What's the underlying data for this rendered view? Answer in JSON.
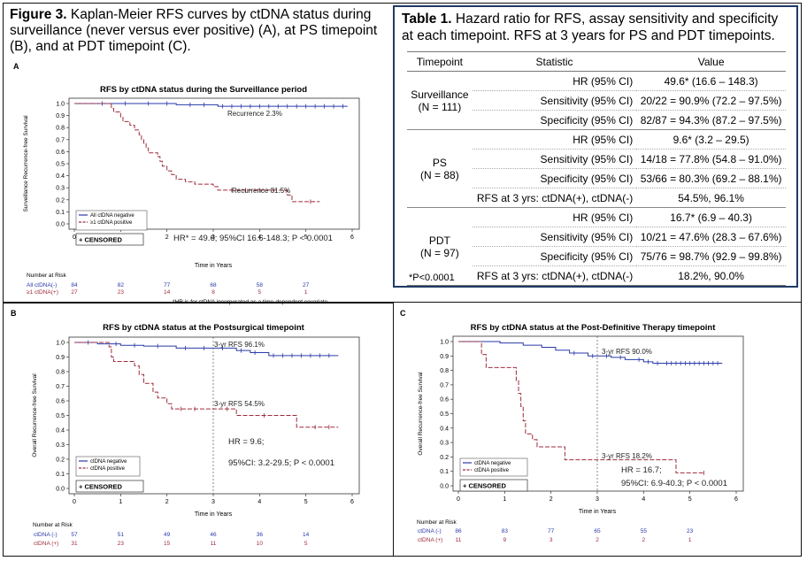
{
  "figure_caption": {
    "label": "Figure 3.",
    "text": "Kaplan-Meier RFS curves by ctDNA status during surveillance (never versus ever positive) (A), at PS timepoint (B), and at PDT timepoint (C)."
  },
  "table": {
    "label": "Table 1.",
    "caption": "Hazard ratio for RFS, assay sensitivity and specificity at each timepoint. RFS at 3 years for PS and PDT timepoints.",
    "headers": [
      "Timepoint",
      "Statistic",
      "Value"
    ],
    "groups": [
      {
        "name": "Surveillance",
        "n": "(N = 111)",
        "rows": [
          {
            "stat": "HR (95% CI)",
            "value": "49.6* (16.6 – 148.3)"
          },
          {
            "stat": "Sensitivity (95% CI)",
            "value": "20/22 = 90.9% (72.2 – 97.5%)"
          },
          {
            "stat": "Specificity (95% CI)",
            "value": "82/87 = 94.3% (87.2 – 97.5%)"
          }
        ]
      },
      {
        "name": "PS",
        "n": "(N = 88)",
        "rows": [
          {
            "stat": "HR (95% CI)",
            "value": "9.6* (3.2 – 29.5)"
          },
          {
            "stat": "Sensitivity (95% CI)",
            "value": "14/18 = 77.8% (54.8 – 91.0%)"
          },
          {
            "stat": "Specificity (95% CI)",
            "value": "53/66 = 80.3% (69.2 – 88.1%)"
          },
          {
            "stat": "RFS at 3 yrs: ctDNA(+), ctDNA(-)",
            "value": "54.5%, 96.1%"
          }
        ]
      },
      {
        "name": "PDT",
        "n": "(N = 97)",
        "rows": [
          {
            "stat": "HR (95% CI)",
            "value": "16.7* (6.9 – 40.3)"
          },
          {
            "stat": "Sensitivity (95% CI)",
            "value": "10/21 = 47.6% (28.3 – 67.6%)"
          },
          {
            "stat": "Specificity (95% CI)",
            "value": "75/76 = 98.7% (92.9 – 99.8%)"
          },
          {
            "stat": "RFS at 3 yrs: ctDNA(+), ctDNA(-)",
            "value": "18.2%, 90.0%"
          }
        ]
      }
    ],
    "footnote": "*P<0.0001"
  },
  "colors": {
    "negative": "#2a3aa8",
    "positive": "#9e2b3c",
    "axis": "#222222",
    "border": "#1f3a66"
  },
  "chart_data": [
    {
      "panel": "A",
      "type": "line",
      "title": "RFS by ctDNA status during the Surveillance period",
      "xlabel": "Time in Years",
      "ylabel": "Surveillance Recurrence-free Survival",
      "xlim": [
        0,
        6
      ],
      "ylim": [
        0,
        1
      ],
      "xticks": [
        "0",
        "1",
        "2",
        "3",
        "4",
        "5",
        "6"
      ],
      "yticks": [
        "0.0",
        "0.1",
        "0.2",
        "0.3",
        "0.4",
        "0.5",
        "0.6",
        "0.7",
        "0.8",
        "0.9",
        "1.0"
      ],
      "series": [
        {
          "name": "All ctDNA negative",
          "color_key": "negative",
          "steps": [
            [
              0,
              1.0
            ],
            [
              2.2,
              0.99
            ],
            [
              3.1,
              0.977
            ],
            [
              5.9,
              0.977
            ]
          ],
          "censored": [
            0.6,
            1.1,
            1.6,
            2.0,
            2.5,
            2.8,
            3.2,
            3.4,
            3.6,
            3.8,
            4.0,
            4.2,
            4.4,
            4.6,
            4.8,
            5.0,
            5.2,
            5.4,
            5.6,
            5.8
          ]
        },
        {
          "name": "≥1 ctDNA positive",
          "color_key": "positive",
          "steps": [
            [
              0,
              1.0
            ],
            [
              0.8,
              0.96
            ],
            [
              0.85,
              0.93
            ],
            [
              1.0,
              0.89
            ],
            [
              1.05,
              0.85
            ],
            [
              1.2,
              0.82
            ],
            [
              1.3,
              0.78
            ],
            [
              1.4,
              0.74
            ],
            [
              1.45,
              0.7
            ],
            [
              1.5,
              0.67
            ],
            [
              1.55,
              0.63
            ],
            [
              1.6,
              0.59
            ],
            [
              1.8,
              0.56
            ],
            [
              1.85,
              0.52
            ],
            [
              1.9,
              0.48
            ],
            [
              2.0,
              0.44
            ],
            [
              2.1,
              0.41
            ],
            [
              2.2,
              0.37
            ],
            [
              2.4,
              0.35
            ],
            [
              2.6,
              0.33
            ],
            [
              3.0,
              0.31
            ],
            [
              3.1,
              0.28
            ],
            [
              4.6,
              0.24
            ],
            [
              4.7,
              0.185
            ],
            [
              5.3,
              0.185
            ]
          ],
          "censored": [
            3.4,
            3.7,
            4.0,
            4.3,
            5.1
          ]
        }
      ],
      "annotations": [
        "Recurrence 2.3%",
        "Recurrence 81.5%",
        "HR* = 49.6; 95%CI 16.6-148.3; P < 0.0001"
      ],
      "censored_label": "+ CENSORED",
      "risk_table": {
        "title": "Number at Risk",
        "rows": [
          {
            "label": "All ctDNA(-)",
            "color_key": "negative",
            "values": [
              "84",
              "82",
              "77",
              "68",
              "58",
              "27"
            ]
          },
          {
            "label": "≥1 ctDNA(+)",
            "color_key": "positive",
            "values": [
              "27",
              "23",
              "14",
              "8",
              "5",
              "1"
            ]
          }
        ]
      },
      "footnote": "*HR is for ctDNA incorporated as a time-dependent covariate"
    },
    {
      "panel": "B",
      "type": "line",
      "title": "RFS by ctDNA status at the Postsurgical timepoint",
      "xlabel": "Time in Years",
      "ylabel": "Overall Recurrence-free Survival",
      "xlim": [
        0,
        6
      ],
      "ylim": [
        0,
        1
      ],
      "xticks": [
        "0",
        "1",
        "2",
        "3",
        "4",
        "5",
        "6"
      ],
      "yticks": [
        "0.0",
        "0.1",
        "0.2",
        "0.3",
        "0.4",
        "0.5",
        "0.6",
        "0.7",
        "0.8",
        "0.9",
        "1.0"
      ],
      "series": [
        {
          "name": "ctDNA negative",
          "color_key": "negative",
          "steps": [
            [
              0,
              1.0
            ],
            [
              0.5,
              0.99
            ],
            [
              1.0,
              0.98
            ],
            [
              1.5,
              0.975
            ],
            [
              2.2,
              0.961
            ],
            [
              3.5,
              0.945
            ],
            [
              3.8,
              0.93
            ],
            [
              4.2,
              0.91
            ],
            [
              5.7,
              0.91
            ]
          ],
          "censored": [
            0.3,
            0.9,
            1.3,
            1.8,
            2.4,
            2.8,
            3.2,
            3.6,
            3.9,
            4.3,
            4.5,
            4.7,
            4.9,
            5.1,
            5.3,
            5.5
          ]
        },
        {
          "name": "ctDNA positive",
          "color_key": "positive",
          "steps": [
            [
              0,
              1.0
            ],
            [
              0.75,
              0.97
            ],
            [
              0.8,
              0.9
            ],
            [
              0.85,
              0.87
            ],
            [
              1.3,
              0.84
            ],
            [
              1.4,
              0.78
            ],
            [
              1.5,
              0.72
            ],
            [
              1.7,
              0.66
            ],
            [
              1.8,
              0.62
            ],
            [
              2.0,
              0.58
            ],
            [
              2.1,
              0.545
            ],
            [
              3.0,
              0.545
            ],
            [
              3.5,
              0.5
            ],
            [
              4.7,
              0.5
            ],
            [
              4.8,
              0.42
            ],
            [
              5.7,
              0.42
            ]
          ],
          "censored": [
            2.3,
            2.6,
            3.3,
            4.1,
            5.2,
            5.5
          ]
        }
      ],
      "annotations": [
        "3-yr RFS 96.1%",
        "3-yr RFS 54.5%",
        "HR = 9.6;",
        "95%CI: 3.2-29.5; P < 0.0001"
      ],
      "censored_label": "+ CENSORED",
      "risk_table": {
        "title": "Number at Risk",
        "rows": [
          {
            "label": "ctDNA (-)",
            "color_key": "negative",
            "values": [
              "57",
              "51",
              "49",
              "46",
              "36",
              "14"
            ]
          },
          {
            "label": "ctDNA (+)",
            "color_key": "positive",
            "values": [
              "31",
              "23",
              "15",
              "11",
              "10",
              "5"
            ]
          }
        ]
      }
    },
    {
      "panel": "C",
      "type": "line",
      "title": "RFS by ctDNA status at the Post-Definitive Therapy timepoint",
      "xlabel": "Time in Years",
      "ylabel": "Overall Recurrence-free Survival",
      "xlim": [
        0,
        6
      ],
      "ylim": [
        0,
        1
      ],
      "xticks": [
        "0",
        "1",
        "2",
        "3",
        "4",
        "5",
        "6"
      ],
      "yticks": [
        "0.0",
        "0.1",
        "0.2",
        "0.3",
        "0.4",
        "0.5",
        "0.6",
        "0.7",
        "0.8",
        "0.9",
        "1.0"
      ],
      "series": [
        {
          "name": "ctDNA negative",
          "color_key": "negative",
          "steps": [
            [
              0,
              1.0
            ],
            [
              0.9,
              0.99
            ],
            [
              1.4,
              0.975
            ],
            [
              1.8,
              0.96
            ],
            [
              2.1,
              0.94
            ],
            [
              2.4,
              0.92
            ],
            [
              2.8,
              0.9
            ],
            [
              3.3,
              0.89
            ],
            [
              3.6,
              0.875
            ],
            [
              4.0,
              0.86
            ],
            [
              4.2,
              0.85
            ],
            [
              5.7,
              0.85
            ]
          ],
          "censored": [
            2.5,
            2.9,
            3.2,
            3.5,
            3.9,
            4.1,
            4.3,
            4.5,
            4.6,
            4.7,
            4.8,
            4.9,
            5.0,
            5.1,
            5.2,
            5.3,
            5.4,
            5.5,
            5.6
          ]
        },
        {
          "name": "ctDNA positive",
          "color_key": "positive",
          "steps": [
            [
              0,
              1.0
            ],
            [
              0.5,
              0.91
            ],
            [
              0.6,
              0.82
            ],
            [
              1.2,
              0.82
            ],
            [
              1.25,
              0.73
            ],
            [
              1.3,
              0.64
            ],
            [
              1.35,
              0.55
            ],
            [
              1.4,
              0.45
            ],
            [
              1.45,
              0.36
            ],
            [
              1.6,
              0.32
            ],
            [
              1.7,
              0.27
            ],
            [
              2.3,
              0.18
            ],
            [
              4.6,
              0.18
            ],
            [
              4.7,
              0.09
            ],
            [
              5.3,
              0.09
            ]
          ],
          "censored": [
            5.3
          ]
        }
      ],
      "annotations": [
        "3-yr RFS 90.0%",
        "3-yr RFS 18.2%",
        "HR = 16.7;",
        "95%CI: 6.9-40.3; P < 0.0001"
      ],
      "censored_label": "+ CENSORED",
      "risk_table": {
        "title": "Number at Risk",
        "rows": [
          {
            "label": "ctDNA (-)",
            "color_key": "negative",
            "values": [
              "86",
              "83",
              "77",
              "65",
              "55",
              "23"
            ]
          },
          {
            "label": "ctDNA (+)",
            "color_key": "positive",
            "values": [
              "11",
              "9",
              "3",
              "2",
              "2",
              "1"
            ]
          }
        ]
      }
    }
  ]
}
